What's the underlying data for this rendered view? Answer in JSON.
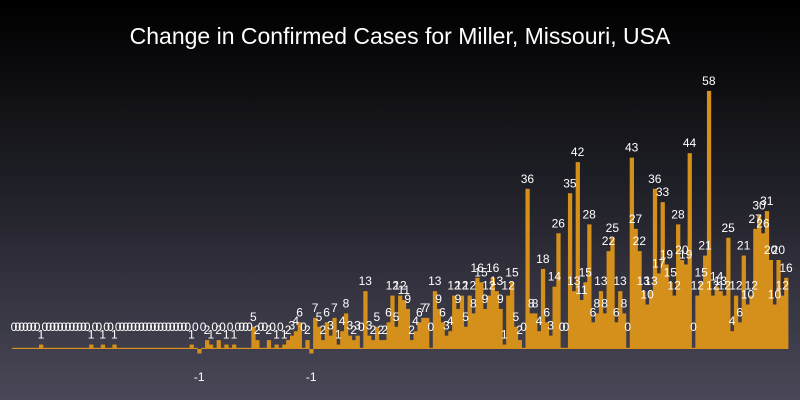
{
  "chart_data": {
    "type": "bar",
    "title": "Change in Confirmed Cases for Miller, Missouri, USA",
    "xlabel": "",
    "ylabel": "",
    "ylim": [
      -1,
      58
    ],
    "grid": false,
    "legend": "none",
    "bar_color": "#d4901a",
    "values": [
      0,
      0,
      0,
      0,
      0,
      0,
      0,
      1,
      0,
      0,
      0,
      0,
      0,
      0,
      0,
      0,
      0,
      0,
      0,
      0,
      1,
      0,
      0,
      1,
      0,
      0,
      1,
      0,
      0,
      0,
      0,
      0,
      0,
      0,
      0,
      0,
      0,
      0,
      0,
      0,
      0,
      0,
      0,
      0,
      0,
      0,
      1,
      0,
      -1,
      0,
      2,
      1,
      0,
      2,
      0,
      1,
      0,
      1,
      0,
      0,
      0,
      0,
      5,
      2,
      0,
      0,
      2,
      0,
      1,
      0,
      1,
      2,
      3,
      4,
      6,
      0,
      2,
      -1,
      7,
      5,
      2,
      6,
      3,
      7,
      1,
      4,
      8,
      3,
      2,
      3,
      0,
      13,
      3,
      2,
      5,
      2,
      2,
      6,
      12,
      5,
      12,
      11,
      9,
      2,
      4,
      6,
      7,
      7,
      0,
      13,
      9,
      6,
      3,
      4,
      12,
      9,
      12,
      5,
      12,
      8,
      16,
      15,
      9,
      12,
      16,
      13,
      9,
      1,
      12,
      15,
      5,
      2,
      0,
      36,
      8,
      8,
      4,
      18,
      6,
      3,
      14,
      26,
      0,
      0,
      35,
      13,
      42,
      11,
      15,
      28,
      6,
      8,
      13,
      8,
      22,
      25,
      6,
      13,
      8,
      0,
      43,
      27,
      22,
      13,
      10,
      13,
      36,
      17,
      33,
      19,
      15,
      12,
      28,
      20,
      19,
      44,
      0,
      12,
      15,
      21,
      58,
      12,
      14,
      13,
      12,
      25,
      4,
      12,
      6,
      21,
      10,
      12,
      27,
      30,
      26,
      31,
      20,
      10,
      20,
      12,
      16
    ],
    "labels": [
      "0",
      "0",
      "0",
      "0",
      "0",
      "0",
      "0",
      "1",
      "0",
      "0",
      "0",
      "0",
      "0",
      "0",
      "0",
      "0",
      "0",
      "0",
      "0",
      "0",
      "1",
      "0",
      "0",
      "1",
      "0",
      "0",
      "1",
      "0",
      "0",
      "0",
      "0",
      "0",
      "0",
      "0",
      "0",
      "0",
      "0",
      "0",
      "0",
      "0",
      "0",
      "0",
      "0",
      "0",
      "0",
      "0",
      "1",
      "0",
      "-1",
      "0",
      "2",
      "1",
      "0",
      "2",
      "0",
      "1",
      "0",
      "1",
      "0",
      "0",
      "0",
      "0",
      "5",
      "2",
      "0",
      "0",
      "2",
      "0",
      "1",
      "0",
      "1",
      "2",
      "3",
      "4",
      "6",
      "0",
      "2",
      "-1",
      "7",
      "5",
      "2",
      "6",
      "3",
      "7",
      "1",
      "4",
      "8",
      "3",
      "2",
      "3",
      "0",
      "13",
      "3",
      "2",
      "5",
      "2",
      "2",
      "6",
      "12",
      "5",
      "12",
      "11",
      "9",
      "2",
      "4",
      "6",
      "7",
      "7",
      "0",
      "13",
      "9",
      "6",
      "3",
      "4",
      "12",
      "9",
      "12",
      "5",
      "12",
      "8",
      "16",
      "15",
      "9",
      "12",
      "16",
      "13",
      "9",
      "1",
      "12",
      "15",
      "5",
      "2",
      "0",
      "36",
      "8",
      "8",
      "4",
      "18",
      "6",
      "3",
      "14",
      "26",
      "0",
      "0",
      "35",
      "13",
      "42",
      "11",
      "15",
      "28",
      "6",
      "8",
      "13",
      "8",
      "22",
      "25",
      "6",
      "13",
      "8",
      "0",
      "43",
      "27",
      "22",
      "13",
      "10",
      "13",
      "36",
      "17",
      "33",
      "19",
      "15",
      "12",
      "28",
      "20",
      "19",
      "44",
      "0",
      "12",
      "15",
      "21",
      "58",
      "12",
      "14",
      "13",
      "12",
      "25",
      "4",
      "12",
      "6",
      "21",
      "10",
      "12",
      "27",
      "30",
      "26",
      "31",
      "20",
      "10",
      "20",
      "12",
      "16"
    ]
  }
}
